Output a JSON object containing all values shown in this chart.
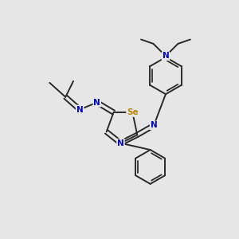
{
  "bg_color": "#e6e6e6",
  "bond_color": "#2a2a2a",
  "N_color": "#0000cc",
  "Se_color": "#b8860b",
  "font_size_atom": 7.5,
  "figsize": [
    3.0,
    3.0
  ],
  "dpi": 100,
  "xlim": [
    0,
    10
  ],
  "ylim": [
    0,
    10
  ]
}
